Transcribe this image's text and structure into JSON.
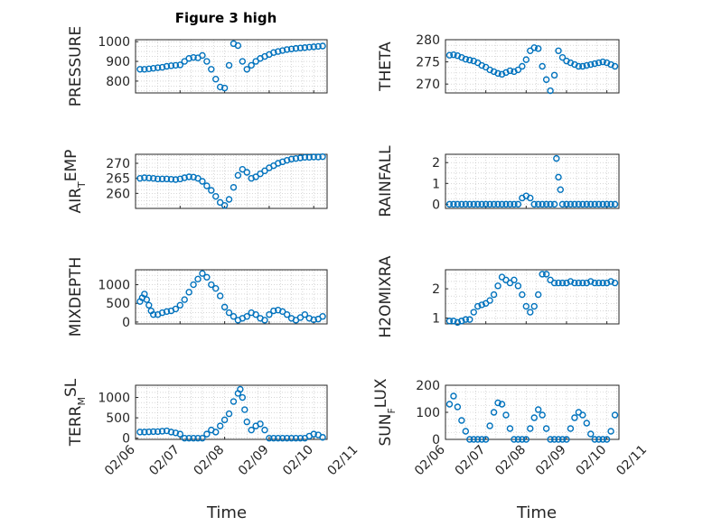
{
  "title": "Figure 3 high",
  "xlabel": "Time",
  "chart_data": [
    {
      "type": "scatter",
      "ylabel": "PRESSURE",
      "ylim": [
        740,
        1010
      ],
      "yticks": [
        800,
        900,
        1000
      ],
      "x": [
        0.1,
        0.2,
        0.3,
        0.4,
        0.5,
        0.6,
        0.7,
        0.8,
        0.9,
        1.0,
        1.1,
        1.2,
        1.3,
        1.4,
        1.5,
        1.6,
        1.7,
        1.8,
        1.9,
        2.0,
        2.1,
        2.2,
        2.3,
        2.4,
        2.5,
        2.6,
        2.7,
        2.8,
        2.9,
        3.0,
        3.1,
        3.2,
        3.3,
        3.4,
        3.5,
        3.6,
        3.7,
        3.8,
        3.9,
        4.0,
        4.1,
        4.2
      ],
      "y": [
        860,
        860,
        862,
        865,
        868,
        870,
        875,
        878,
        880,
        882,
        900,
        915,
        920,
        918,
        930,
        900,
        860,
        810,
        770,
        765,
        880,
        990,
        980,
        900,
        860,
        880,
        900,
        915,
        925,
        935,
        945,
        950,
        955,
        960,
        963,
        966,
        968,
        970,
        972,
        974,
        976,
        978
      ]
    },
    {
      "type": "scatter",
      "ylabel": "THETA",
      "ylim": [
        268,
        280
      ],
      "yticks": [
        270,
        275,
        280
      ],
      "x": [
        0.1,
        0.2,
        0.3,
        0.4,
        0.5,
        0.6,
        0.7,
        0.8,
        0.9,
        1.0,
        1.1,
        1.2,
        1.3,
        1.4,
        1.5,
        1.6,
        1.7,
        1.8,
        1.9,
        2.0,
        2.1,
        2.2,
        2.3,
        2.4,
        2.5,
        2.6,
        2.7,
        2.8,
        2.9,
        3.0,
        3.1,
        3.2,
        3.3,
        3.4,
        3.5,
        3.6,
        3.7,
        3.8,
        3.9,
        4.0,
        4.1,
        4.2
      ],
      "y": [
        276.5,
        276.6,
        276.4,
        276,
        275.6,
        275.4,
        275.2,
        274.8,
        274.2,
        273.8,
        273.2,
        272.8,
        272.4,
        272.2,
        272.6,
        273,
        272.8,
        273.2,
        274,
        275.5,
        277.5,
        278.2,
        278,
        274,
        271,
        268.5,
        272,
        277.5,
        276,
        275.2,
        274.8,
        274.4,
        274,
        274,
        274.2,
        274.4,
        274.6,
        274.8,
        275,
        274.8,
        274.4,
        274
      ]
    },
    {
      "type": "scatter",
      "ylabel": "AIR",
      "ylabel_sub": "T",
      "ylabel_suffix": "EMP",
      "ylim": [
        255,
        273
      ],
      "yticks": [
        260,
        265,
        270
      ],
      "x": [
        0.1,
        0.2,
        0.3,
        0.4,
        0.5,
        0.6,
        0.7,
        0.8,
        0.9,
        1.0,
        1.1,
        1.2,
        1.3,
        1.4,
        1.5,
        1.6,
        1.7,
        1.8,
        1.9,
        2.0,
        2.1,
        2.2,
        2.3,
        2.4,
        2.5,
        2.6,
        2.7,
        2.8,
        2.9,
        3.0,
        3.1,
        3.2,
        3.3,
        3.4,
        3.5,
        3.6,
        3.7,
        3.8,
        3.9,
        4.0,
        4.1,
        4.2
      ],
      "y": [
        265,
        265.2,
        265.1,
        265,
        264.8,
        264.8,
        264.8,
        264.7,
        264.6,
        264.8,
        265.2,
        265.5,
        265.4,
        265,
        264,
        262.5,
        261,
        259,
        257,
        256,
        258,
        262,
        266,
        268,
        267,
        265,
        265.5,
        266.5,
        267.5,
        268.5,
        269.2,
        270,
        270.5,
        271,
        271.4,
        271.6,
        271.8,
        272,
        272,
        272.1,
        272.1,
        272.2
      ]
    },
    {
      "type": "scatter",
      "ylabel": "RAINFALL",
      "ylim": [
        -0.2,
        2.4
      ],
      "yticks": [
        0,
        1,
        2
      ],
      "x": [
        0.1,
        0.2,
        0.3,
        0.4,
        0.5,
        0.6,
        0.7,
        0.8,
        0.9,
        1.0,
        1.1,
        1.2,
        1.3,
        1.4,
        1.5,
        1.6,
        1.7,
        1.8,
        1.9,
        2.0,
        2.1,
        2.2,
        2.3,
        2.4,
        2.5,
        2.6,
        2.7,
        2.75,
        2.8,
        2.85,
        2.9,
        3.0,
        3.1,
        3.2,
        3.3,
        3.4,
        3.5,
        3.6,
        3.7,
        3.8,
        3.9,
        4.0,
        4.1,
        4.2
      ],
      "y": [
        0,
        0,
        0,
        0,
        0,
        0,
        0,
        0,
        0,
        0,
        0,
        0,
        0,
        0,
        0,
        0,
        0,
        0,
        0.3,
        0.4,
        0.3,
        0,
        0,
        0,
        0,
        0,
        0,
        2.2,
        1.3,
        0.7,
        0,
        0,
        0,
        0,
        0,
        0,
        0,
        0,
        0,
        0,
        0,
        0,
        0,
        0
      ]
    },
    {
      "type": "scatter",
      "ylabel": "MIXDEPTH",
      "ylim": [
        -50,
        1400
      ],
      "yticks": [
        0,
        500,
        1000
      ],
      "x": [
        0.1,
        0.15,
        0.2,
        0.25,
        0.3,
        0.35,
        0.4,
        0.5,
        0.6,
        0.7,
        0.8,
        0.9,
        1.0,
        1.1,
        1.2,
        1.3,
        1.4,
        1.5,
        1.6,
        1.7,
        1.8,
        1.9,
        2.0,
        2.1,
        2.2,
        2.3,
        2.4,
        2.5,
        2.6,
        2.7,
        2.8,
        2.9,
        3.0,
        3.1,
        3.2,
        3.3,
        3.4,
        3.5,
        3.6,
        3.7,
        3.8,
        3.9,
        4.0,
        4.1,
        4.2
      ],
      "y": [
        550,
        650,
        750,
        600,
        450,
        300,
        200,
        200,
        250,
        280,
        300,
        350,
        450,
        600,
        800,
        1000,
        1150,
        1300,
        1200,
        1000,
        900,
        700,
        400,
        250,
        150,
        50,
        100,
        150,
        250,
        200,
        100,
        50,
        200,
        300,
        320,
        280,
        200,
        100,
        50,
        120,
        200,
        100,
        60,
        80,
        150
      ]
    },
    {
      "type": "scatter",
      "ylabel": "H2OMIXRA",
      "ylim": [
        0.8,
        2.65
      ],
      "yticks": [
        1,
        2
      ],
      "x": [
        0.1,
        0.2,
        0.3,
        0.4,
        0.5,
        0.6,
        0.7,
        0.8,
        0.9,
        1.0,
        1.1,
        1.2,
        1.3,
        1.4,
        1.5,
        1.6,
        1.7,
        1.8,
        1.9,
        2.0,
        2.1,
        2.2,
        2.3,
        2.4,
        2.5,
        2.6,
        2.7,
        2.8,
        2.9,
        3.0,
        3.1,
        3.2,
        3.3,
        3.4,
        3.5,
        3.6,
        3.7,
        3.8,
        3.9,
        4.0,
        4.1,
        4.2
      ],
      "y": [
        0.9,
        0.9,
        0.85,
        0.9,
        0.95,
        0.95,
        1.2,
        1.4,
        1.45,
        1.5,
        1.6,
        1.8,
        2.1,
        2.4,
        2.3,
        2.2,
        2.3,
        2.1,
        1.8,
        1.4,
        1.2,
        1.4,
        1.8,
        2.5,
        2.5,
        2.3,
        2.2,
        2.2,
        2.2,
        2.2,
        2.25,
        2.2,
        2.2,
        2.2,
        2.2,
        2.25,
        2.2,
        2.2,
        2.2,
        2.2,
        2.25,
        2.2
      ]
    },
    {
      "type": "scatter",
      "ylabel": "TERR",
      "ylabel_sub": "M",
      "ylabel_suffix": "SL",
      "ylim": [
        -30,
        1300
      ],
      "yticks": [
        0,
        500,
        1000
      ],
      "x": [
        0.1,
        0.2,
        0.3,
        0.4,
        0.5,
        0.6,
        0.7,
        0.8,
        0.9,
        1.0,
        1.1,
        1.2,
        1.3,
        1.4,
        1.5,
        1.6,
        1.7,
        1.8,
        1.9,
        2.0,
        2.1,
        2.2,
        2.3,
        2.35,
        2.4,
        2.45,
        2.5,
        2.6,
        2.7,
        2.8,
        2.9,
        3.0,
        3.1,
        3.2,
        3.3,
        3.4,
        3.5,
        3.6,
        3.7,
        3.8,
        3.9,
        4.0,
        4.1,
        4.2
      ],
      "y": [
        150,
        150,
        155,
        160,
        160,
        170,
        180,
        150,
        130,
        100,
        0,
        0,
        0,
        0,
        0,
        100,
        200,
        150,
        300,
        450,
        600,
        900,
        1100,
        1200,
        1000,
        700,
        400,
        200,
        300,
        350,
        200,
        0,
        0,
        0,
        0,
        0,
        0,
        0,
        0,
        0,
        50,
        100,
        80,
        20
      ]
    },
    {
      "type": "scatter",
      "ylabel": "SUN",
      "ylabel_sub": "F",
      "ylabel_suffix": "LUX",
      "ylim": [
        0,
        200
      ],
      "yticks": [
        0,
        100,
        200
      ],
      "x": [
        0.1,
        0.2,
        0.3,
        0.4,
        0.5,
        0.6,
        0.7,
        0.8,
        0.9,
        1.0,
        1.1,
        1.2,
        1.3,
        1.4,
        1.5,
        1.6,
        1.7,
        1.8,
        1.9,
        2.0,
        2.1,
        2.2,
        2.3,
        2.4,
        2.5,
        2.6,
        2.7,
        2.8,
        2.9,
        3.0,
        3.1,
        3.2,
        3.3,
        3.4,
        3.5,
        3.6,
        3.7,
        3.8,
        3.9,
        4.0,
        4.1,
        4.2
      ],
      "y": [
        130,
        160,
        120,
        70,
        30,
        0,
        0,
        0,
        0,
        0,
        50,
        100,
        135,
        130,
        90,
        40,
        0,
        0,
        0,
        0,
        40,
        80,
        110,
        90,
        40,
        0,
        0,
        0,
        0,
        0,
        40,
        80,
        100,
        90,
        60,
        20,
        0,
        0,
        0,
        0,
        30,
        90
      ]
    }
  ],
  "xaxis": {
    "ticks": [
      0,
      1,
      2,
      3,
      4,
      5
    ],
    "ticklabels": [
      "02/06",
      "02/07",
      "02/08",
      "02/09",
      "02/10",
      "02/11"
    ]
  },
  "colors": {
    "marker": "#0072BD",
    "axis": "#262626",
    "grid": "#bfbfbf"
  }
}
